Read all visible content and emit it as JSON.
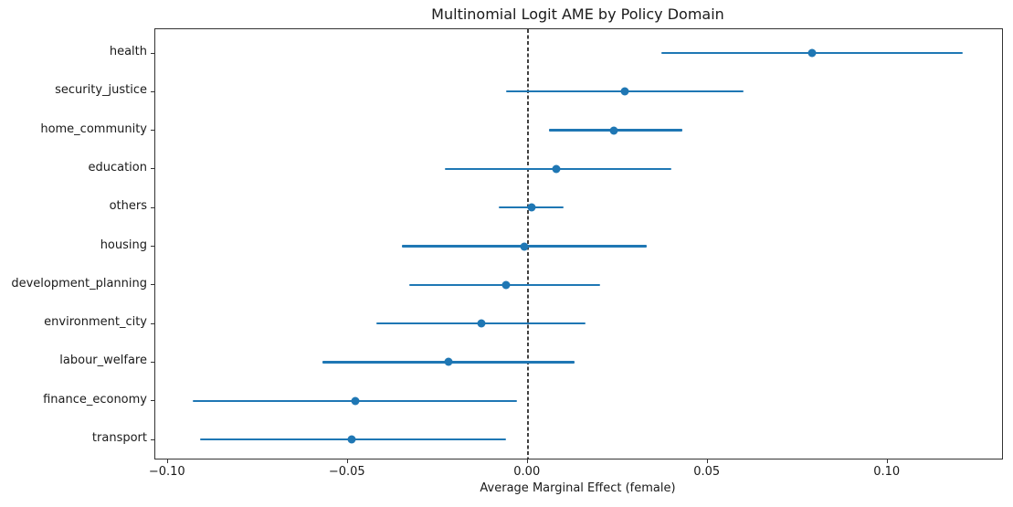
{
  "chart_data": {
    "type": "scatter",
    "variant": "horizontal-dot-with-confidence-intervals",
    "title": "Multinomial Logit AME by Policy Domain",
    "xlabel": "Average Marginal Effect (female)",
    "ylabel": "",
    "categories": [
      "health",
      "security_justice",
      "home_community",
      "education",
      "others",
      "housing",
      "development_planning",
      "environment_city",
      "labour_welfare",
      "finance_economy",
      "transport"
    ],
    "series": [
      {
        "name": "AME (female)",
        "values": [
          0.079,
          0.027,
          0.024,
          0.008,
          0.001,
          -0.001,
          -0.006,
          -0.013,
          -0.022,
          -0.048,
          -0.049
        ],
        "ci_low": [
          0.037,
          -0.006,
          0.006,
          -0.023,
          -0.008,
          -0.035,
          -0.033,
          -0.042,
          -0.057,
          -0.093,
          -0.091
        ],
        "ci_high": [
          0.121,
          0.06,
          0.043,
          0.04,
          0.01,
          0.033,
          0.02,
          0.016,
          0.013,
          -0.003,
          -0.006
        ]
      }
    ],
    "xlim": [
      -0.1035,
      0.1318
    ],
    "xticks": [
      -0.1,
      -0.05,
      0.0,
      0.05,
      0.1
    ],
    "xtick_labels": [
      "−0.10",
      "−0.05",
      "0.00",
      "0.05",
      "0.10"
    ],
    "reference_line": {
      "x": 0.0,
      "style": "dashed",
      "color": "#404040"
    },
    "grid": false,
    "legend_position": "none",
    "colors": {
      "marker": "#1f77b4",
      "ci_line": "#1f77b4",
      "spine": "#333333",
      "text": "#1a1a1a"
    }
  }
}
